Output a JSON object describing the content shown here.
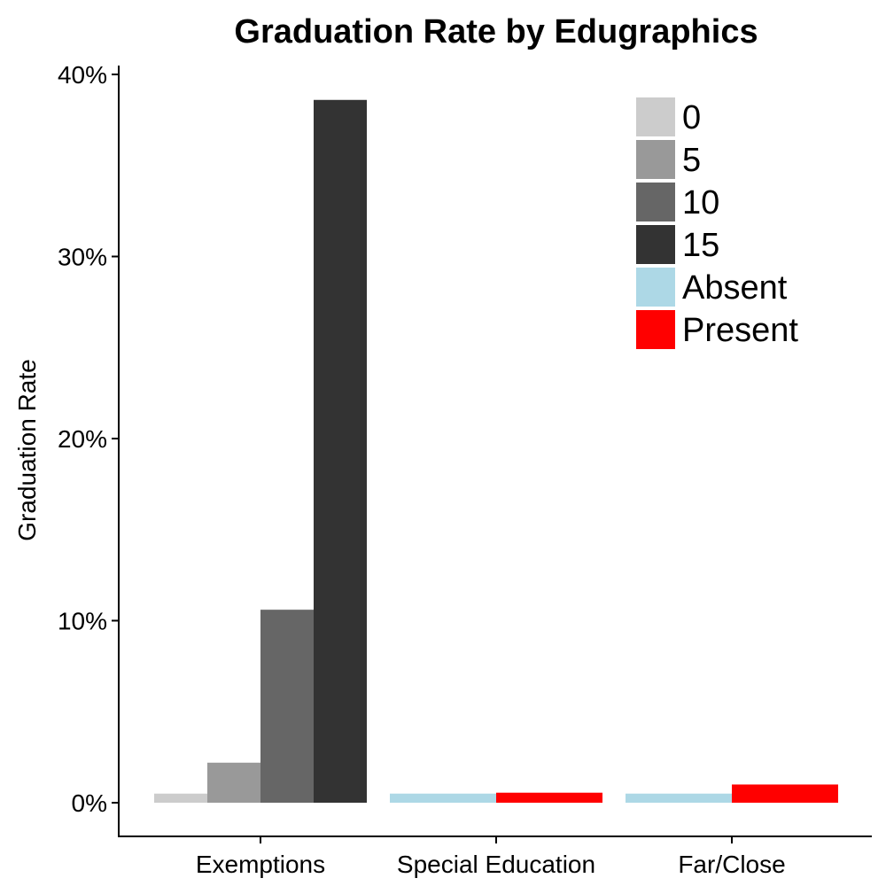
{
  "chart_data": {
    "type": "bar",
    "title": "Graduation Rate by Edugraphics",
    "xlabel": "",
    "ylabel": "Graduation Rate",
    "ylim": [
      0,
      40
    ],
    "y_tick_values": [
      0,
      10,
      20,
      30,
      40
    ],
    "y_tick_labels": [
      "0%",
      "10%",
      "20%",
      "30%",
      "40%"
    ],
    "grid": false,
    "legend_position": "top-right",
    "categories": [
      "Exemptions",
      "Special Education",
      "Far/Close"
    ],
    "groups": [
      {
        "category": "Exemptions",
        "bars": [
          {
            "key": "0",
            "value": 0.5
          },
          {
            "key": "5",
            "value": 2.2
          },
          {
            "key": "10",
            "value": 10.6
          },
          {
            "key": "15",
            "value": 38.6
          }
        ]
      },
      {
        "category": "Special Education",
        "bars": [
          {
            "key": "Absent",
            "value": 0.5
          },
          {
            "key": "Present",
            "value": 0.55
          }
        ]
      },
      {
        "category": "Far/Close",
        "bars": [
          {
            "key": "Absent",
            "value": 0.5
          },
          {
            "key": "Present",
            "value": 1.0
          }
        ]
      }
    ],
    "legend": [
      {
        "key": "0",
        "label": "0",
        "color": "#cccccc"
      },
      {
        "key": "5",
        "label": "5",
        "color": "#999999"
      },
      {
        "key": "10",
        "label": "10",
        "color": "#666666"
      },
      {
        "key": "15",
        "label": "15",
        "color": "#333333"
      },
      {
        "key": "Absent",
        "label": "Absent",
        "color": "#add8e6"
      },
      {
        "key": "Present",
        "label": "Present",
        "color": "#ff0000"
      }
    ]
  }
}
